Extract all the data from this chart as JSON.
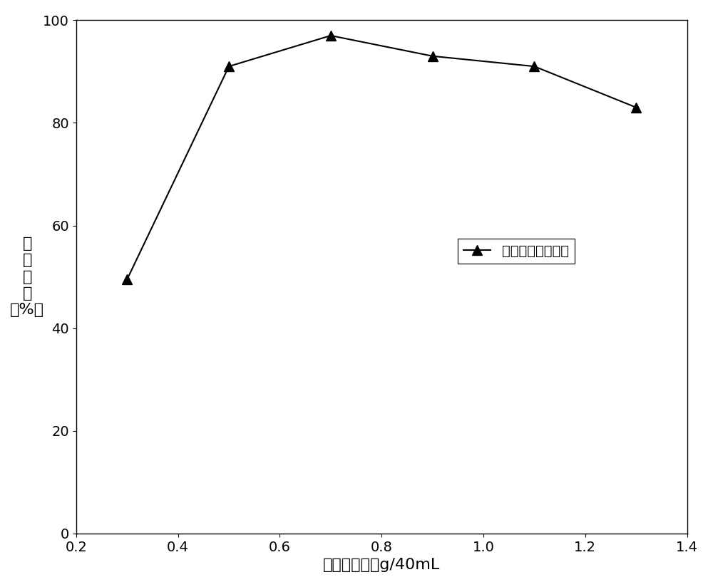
{
  "x": [
    0.3,
    0.5,
    0.7,
    0.9,
    1.1,
    1.3
  ],
  "y": [
    49.5,
    91.0,
    97.0,
    93.0,
    91.0,
    83.0
  ],
  "xlim": [
    0.2,
    1.4
  ],
  "ylim": [
    0,
    100
  ],
  "xticks": [
    0.2,
    0.4,
    0.6,
    0.8,
    1.0,
    1.2,
    1.4
  ],
  "yticks": [
    0,
    20,
    40,
    60,
    80,
    100
  ],
  "xlabel": "双金属投加量g/40mL",
  "ylabel_chars": [
    "降",
    "解",
    "效",
    "率",
    "（%）"
  ],
  "legend_label": "三氯乙烯降解效率",
  "line_color": "#000000",
  "marker": "^",
  "marker_size": 10,
  "marker_facecolor": "#000000",
  "linewidth": 1.5,
  "xlabel_fontsize": 16,
  "ylabel_fontsize": 16,
  "tick_fontsize": 14,
  "legend_fontsize": 14,
  "figure_width": 10.0,
  "figure_height": 8.24
}
